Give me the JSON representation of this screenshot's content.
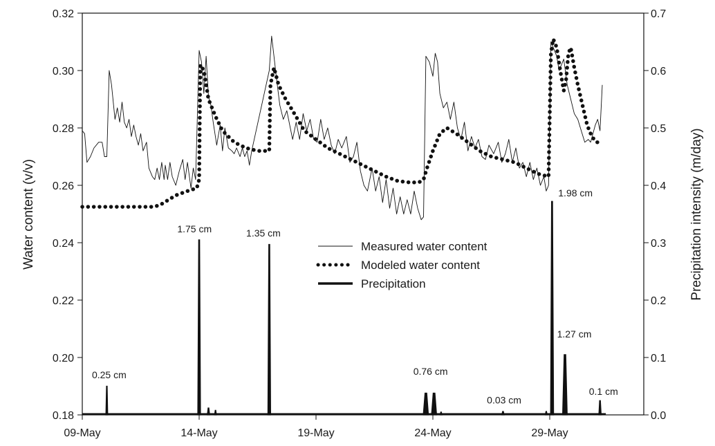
{
  "chart_data": {
    "type": "line",
    "title": "",
    "x_ticks": [
      "09-May",
      "14-May",
      "19-May",
      "24-May",
      "29-May"
    ],
    "x_tick_days": [
      0,
      5,
      10,
      15,
      20
    ],
    "xlim_days": [
      0,
      24
    ],
    "ylabel_left": "Water content (v/v)",
    "ylabel_right": "Precipitation intensity (m/day)",
    "ylim_left": [
      0.18,
      0.32
    ],
    "yticks_left": [
      "0.18",
      "0.20",
      "0.22",
      "0.24",
      "0.26",
      "0.28",
      "0.30",
      "0.32"
    ],
    "ylim_right": [
      0.0,
      0.7
    ],
    "yticks_right": [
      "0.0",
      "0.1",
      "0.2",
      "0.3",
      "0.4",
      "0.5",
      "0.6",
      "0.7"
    ],
    "legend": {
      "position": "center",
      "entries": [
        "Measured water content",
        "Modeled water content",
        "Precipitation"
      ]
    },
    "series": [
      {
        "name": "Measured water content",
        "axis": "left",
        "style": "thin-line",
        "points": [
          [
            0.0,
            0.279
          ],
          [
            0.1,
            0.278
          ],
          [
            0.2,
            0.268
          ],
          [
            0.35,
            0.27
          ],
          [
            0.5,
            0.273
          ],
          [
            0.7,
            0.275
          ],
          [
            0.85,
            0.275
          ],
          [
            0.95,
            0.27
          ],
          [
            1.05,
            0.27
          ],
          [
            1.15,
            0.3
          ],
          [
            1.25,
            0.295
          ],
          [
            1.4,
            0.283
          ],
          [
            1.5,
            0.287
          ],
          [
            1.6,
            0.282
          ],
          [
            1.7,
            0.289
          ],
          [
            1.8,
            0.282
          ],
          [
            1.9,
            0.28
          ],
          [
            2.0,
            0.283
          ],
          [
            2.1,
            0.277
          ],
          [
            2.2,
            0.281
          ],
          [
            2.3,
            0.277
          ],
          [
            2.4,
            0.274
          ],
          [
            2.5,
            0.278
          ],
          [
            2.6,
            0.272
          ],
          [
            2.75,
            0.275
          ],
          [
            2.85,
            0.266
          ],
          [
            3.0,
            0.263
          ],
          [
            3.1,
            0.262
          ],
          [
            3.2,
            0.266
          ],
          [
            3.3,
            0.262
          ],
          [
            3.4,
            0.268
          ],
          [
            3.5,
            0.262
          ],
          [
            3.55,
            0.267
          ],
          [
            3.65,
            0.262
          ],
          [
            3.75,
            0.268
          ],
          [
            3.85,
            0.263
          ],
          [
            4.0,
            0.26
          ],
          [
            4.15,
            0.265
          ],
          [
            4.3,
            0.269
          ],
          [
            4.4,
            0.262
          ],
          [
            4.5,
            0.268
          ],
          [
            4.6,
            0.262
          ],
          [
            4.65,
            0.259
          ],
          [
            4.75,
            0.266
          ],
          [
            4.85,
            0.262
          ],
          [
            5.0,
            0.307
          ],
          [
            5.1,
            0.303
          ],
          [
            5.2,
            0.292
          ],
          [
            5.3,
            0.305
          ],
          [
            5.4,
            0.291
          ],
          [
            5.5,
            0.288
          ],
          [
            5.6,
            0.282
          ],
          [
            5.75,
            0.274
          ],
          [
            5.9,
            0.281
          ],
          [
            6.0,
            0.272
          ],
          [
            6.1,
            0.28
          ],
          [
            6.25,
            0.273
          ],
          [
            6.4,
            0.272
          ],
          [
            6.5,
            0.271
          ],
          [
            6.6,
            0.273
          ],
          [
            6.75,
            0.27
          ],
          [
            6.85,
            0.273
          ],
          [
            6.95,
            0.27
          ],
          [
            7.05,
            0.272
          ],
          [
            7.15,
            0.267
          ],
          [
            7.25,
            0.272
          ],
          [
            8.0,
            0.3
          ],
          [
            8.1,
            0.312
          ],
          [
            8.2,
            0.305
          ],
          [
            8.3,
            0.298
          ],
          [
            8.45,
            0.288
          ],
          [
            8.6,
            0.283
          ],
          [
            8.75,
            0.286
          ],
          [
            8.9,
            0.28
          ],
          [
            9.0,
            0.276
          ],
          [
            9.15,
            0.282
          ],
          [
            9.3,
            0.276
          ],
          [
            9.45,
            0.285
          ],
          [
            9.6,
            0.279
          ],
          [
            9.75,
            0.283
          ],
          [
            9.9,
            0.276
          ],
          [
            10.05,
            0.275
          ],
          [
            10.2,
            0.283
          ],
          [
            10.35,
            0.276
          ],
          [
            10.5,
            0.28
          ],
          [
            10.65,
            0.274
          ],
          [
            10.8,
            0.271
          ],
          [
            10.95,
            0.276
          ],
          [
            11.1,
            0.273
          ],
          [
            11.3,
            0.277
          ],
          [
            11.45,
            0.268
          ],
          [
            11.6,
            0.27
          ],
          [
            11.75,
            0.275
          ],
          [
            11.9,
            0.265
          ],
          [
            12.05,
            0.26
          ],
          [
            12.2,
            0.258
          ],
          [
            12.4,
            0.266
          ],
          [
            12.55,
            0.258
          ],
          [
            12.7,
            0.263
          ],
          [
            12.85,
            0.254
          ],
          [
            13.0,
            0.262
          ],
          [
            13.15,
            0.252
          ],
          [
            13.3,
            0.259
          ],
          [
            13.45,
            0.25
          ],
          [
            13.6,
            0.256
          ],
          [
            13.75,
            0.25
          ],
          [
            13.9,
            0.255
          ],
          [
            14.05,
            0.25
          ],
          [
            14.2,
            0.258
          ],
          [
            14.35,
            0.252
          ],
          [
            14.5,
            0.248
          ],
          [
            14.6,
            0.249
          ],
          [
            14.7,
            0.305
          ],
          [
            14.85,
            0.303
          ],
          [
            15.0,
            0.298
          ],
          [
            15.1,
            0.306
          ],
          [
            15.2,
            0.303
          ],
          [
            15.3,
            0.292
          ],
          [
            15.45,
            0.287
          ],
          [
            15.6,
            0.289
          ],
          [
            15.75,
            0.283
          ],
          [
            15.9,
            0.289
          ],
          [
            16.05,
            0.28
          ],
          [
            16.2,
            0.276
          ],
          [
            16.35,
            0.282
          ],
          [
            16.5,
            0.272
          ],
          [
            16.65,
            0.277
          ],
          [
            16.8,
            0.273
          ],
          [
            16.95,
            0.276
          ],
          [
            17.1,
            0.27
          ],
          [
            17.25,
            0.269
          ],
          [
            17.4,
            0.274
          ],
          [
            17.6,
            0.271
          ],
          [
            17.8,
            0.275
          ],
          [
            17.95,
            0.268
          ],
          [
            18.1,
            0.271
          ],
          [
            18.25,
            0.276
          ],
          [
            18.4,
            0.268
          ],
          [
            18.55,
            0.273
          ],
          [
            18.7,
            0.266
          ],
          [
            18.85,
            0.268
          ],
          [
            19.0,
            0.263
          ],
          [
            19.15,
            0.268
          ],
          [
            19.3,
            0.262
          ],
          [
            19.45,
            0.266
          ],
          [
            19.6,
            0.26
          ],
          [
            19.75,
            0.263
          ],
          [
            19.85,
            0.258
          ],
          [
            19.95,
            0.26
          ],
          [
            20.05,
            0.31
          ],
          [
            20.15,
            0.308
          ],
          [
            20.3,
            0.305
          ],
          [
            20.4,
            0.3
          ],
          [
            20.5,
            0.302
          ],
          [
            20.6,
            0.304
          ],
          [
            20.75,
            0.295
          ],
          [
            20.9,
            0.29
          ],
          [
            21.05,
            0.285
          ],
          [
            21.2,
            0.283
          ],
          [
            21.35,
            0.279
          ],
          [
            21.5,
            0.275
          ],
          [
            21.65,
            0.276
          ],
          [
            21.75,
            0.275
          ],
          [
            21.85,
            0.278
          ],
          [
            21.95,
            0.281
          ],
          [
            22.05,
            0.283
          ],
          [
            22.15,
            0.279
          ],
          [
            22.25,
            0.295
          ]
        ]
      },
      {
        "name": "Modeled water content",
        "axis": "left",
        "style": "dotted",
        "points": [
          [
            0.0,
            0.2525
          ],
          [
            3.0,
            0.2525
          ],
          [
            3.3,
            0.253
          ],
          [
            3.6,
            0.2545
          ],
          [
            4.0,
            0.2565
          ],
          [
            4.5,
            0.258
          ],
          [
            4.9,
            0.259
          ],
          [
            5.0,
            0.262
          ],
          [
            5.05,
            0.302
          ],
          [
            5.2,
            0.3
          ],
          [
            5.4,
            0.29
          ],
          [
            5.7,
            0.284
          ],
          [
            6.0,
            0.279
          ],
          [
            6.5,
            0.275
          ],
          [
            7.0,
            0.273
          ],
          [
            7.5,
            0.272
          ],
          [
            8.0,
            0.272
          ],
          [
            8.05,
            0.295
          ],
          [
            8.2,
            0.301
          ],
          [
            8.4,
            0.295
          ],
          [
            8.7,
            0.29
          ],
          [
            9.0,
            0.286
          ],
          [
            9.5,
            0.279
          ],
          [
            10.0,
            0.276
          ],
          [
            10.5,
            0.273
          ],
          [
            11.0,
            0.271
          ],
          [
            11.5,
            0.269
          ],
          [
            12.0,
            0.267
          ],
          [
            12.5,
            0.265
          ],
          [
            13.0,
            0.263
          ],
          [
            13.5,
            0.2615
          ],
          [
            14.0,
            0.261
          ],
          [
            14.4,
            0.261
          ],
          [
            14.6,
            0.262
          ],
          [
            14.75,
            0.266
          ],
          [
            15.0,
            0.272
          ],
          [
            15.3,
            0.278
          ],
          [
            15.6,
            0.28
          ],
          [
            16.0,
            0.278
          ],
          [
            16.5,
            0.275
          ],
          [
            17.0,
            0.272
          ],
          [
            17.5,
            0.27
          ],
          [
            18.0,
            0.269
          ],
          [
            18.5,
            0.268
          ],
          [
            19.0,
            0.266
          ],
          [
            19.5,
            0.264
          ],
          [
            19.95,
            0.263
          ],
          [
            20.05,
            0.306
          ],
          [
            20.15,
            0.311
          ],
          [
            20.3,
            0.308
          ],
          [
            20.45,
            0.3
          ],
          [
            20.6,
            0.293
          ],
          [
            20.7,
            0.297
          ],
          [
            20.8,
            0.306
          ],
          [
            20.9,
            0.308
          ],
          [
            21.05,
            0.301
          ],
          [
            21.2,
            0.295
          ],
          [
            21.4,
            0.288
          ],
          [
            21.6,
            0.281
          ],
          [
            21.8,
            0.277
          ],
          [
            22.0,
            0.275
          ],
          [
            22.05,
            0.275
          ]
        ]
      },
      {
        "name": "Precipitation",
        "axis": "right",
        "style": "thick-spikes",
        "spikes": [
          {
            "day": 1.05,
            "value": 0.05,
            "width": 0.08
          },
          {
            "day": 5.0,
            "value": 0.305,
            "width": 0.12
          },
          {
            "day": 5.4,
            "value": 0.012,
            "width": 0.1
          },
          {
            "day": 5.7,
            "value": 0.008,
            "width": 0.08
          },
          {
            "day": 8.0,
            "value": 0.297,
            "width": 0.12
          },
          {
            "day": 14.7,
            "value": 0.038,
            "width": 0.22
          },
          {
            "day": 15.05,
            "value": 0.038,
            "width": 0.22
          },
          {
            "day": 15.35,
            "value": 0.005,
            "width": 0.08
          },
          {
            "day": 18.0,
            "value": 0.006,
            "width": 0.1
          },
          {
            "day": 19.85,
            "value": 0.006,
            "width": 0.08
          },
          {
            "day": 20.1,
            "value": 0.372,
            "width": 0.13
          },
          {
            "day": 20.65,
            "value": 0.105,
            "width": 0.2
          },
          {
            "day": 22.15,
            "value": 0.025,
            "width": 0.1
          }
        ]
      }
    ],
    "annotations": [
      {
        "text": "0.25 cm",
        "day": 1.15,
        "value": 0.064
      },
      {
        "text": "1.75 cm",
        "day": 4.8,
        "value": 0.318
      },
      {
        "text": "1.35 cm",
        "day": 7.75,
        "value": 0.311
      },
      {
        "text": "0.76 cm",
        "day": 14.9,
        "value": 0.07
      },
      {
        "text": "0.03 cm",
        "day": 18.05,
        "value": 0.02
      },
      {
        "text": "1.98 cm",
        "day": 21.1,
        "value": 0.381
      },
      {
        "text": "1.27 cm",
        "day": 21.05,
        "value": 0.135
      },
      {
        "text": "0.1 cm",
        "day": 22.3,
        "value": 0.035
      }
    ]
  }
}
